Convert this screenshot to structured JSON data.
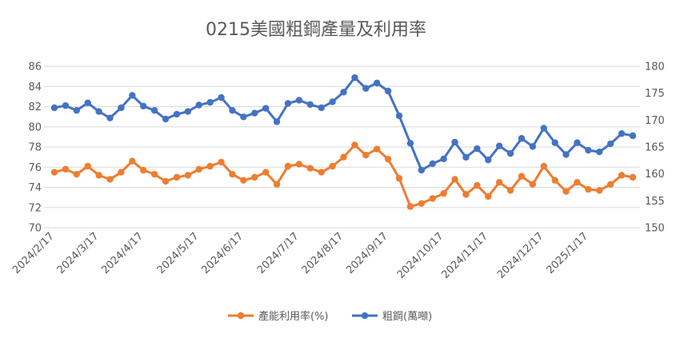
{
  "chart_data": {
    "type": "line",
    "title": "0215美國粗鋼產量及利用率",
    "x_labels": [
      "2024/2/17",
      "2024/3/17",
      "2024/4/17",
      "2024/5/17",
      "2024/6/17",
      "2024/7/17",
      "2024/8/17",
      "2024/9/17",
      "2024/10/17",
      "2024/11/17",
      "2024/12/17",
      "2025/1/17"
    ],
    "y_left": {
      "min": 70,
      "max": 86,
      "step": 2
    },
    "y_right": {
      "min": 150,
      "max": 180,
      "step": 5
    },
    "grid": true,
    "legend_position": "bottom",
    "series": [
      {
        "name": "產能利用率(%)",
        "axis": "left",
        "color": "#ED7D31",
        "values": [
          75.5,
          75.8,
          75.3,
          76.1,
          75.2,
          74.8,
          75.5,
          76.6,
          75.7,
          75.3,
          74.6,
          75.0,
          75.2,
          75.8,
          76.1,
          76.5,
          75.3,
          74.7,
          75.0,
          75.5,
          74.3,
          76.1,
          76.3,
          75.9,
          75.5,
          76.1,
          77.0,
          78.2,
          77.2,
          77.8,
          76.8,
          74.9,
          72.1,
          72.4,
          72.9,
          73.4,
          74.8,
          73.3,
          74.2,
          73.1,
          74.5,
          73.7,
          75.1,
          74.3,
          76.1,
          74.7,
          73.6,
          74.5,
          73.8,
          73.7,
          74.3,
          75.2,
          75.0
        ]
      },
      {
        "name": "粗鋼(萬噸)",
        "axis": "right",
        "color": "#4472C4",
        "values": [
          172.3,
          172.7,
          171.8,
          173.2,
          171.6,
          170.4,
          172.3,
          174.6,
          172.6,
          171.8,
          170.2,
          171.1,
          171.6,
          172.8,
          173.3,
          174.2,
          171.8,
          170.6,
          171.3,
          172.2,
          169.7,
          173.1,
          173.7,
          172.9,
          172.3,
          173.4,
          175.2,
          177.9,
          175.9,
          176.9,
          175.4,
          170.8,
          165.7,
          160.7,
          161.9,
          162.8,
          165.9,
          163.1,
          164.7,
          162.6,
          165.2,
          163.8,
          166.6,
          165.1,
          168.5,
          165.8,
          163.6,
          165.8,
          164.4,
          164.1,
          165.6,
          167.5,
          167.1
        ]
      }
    ]
  }
}
